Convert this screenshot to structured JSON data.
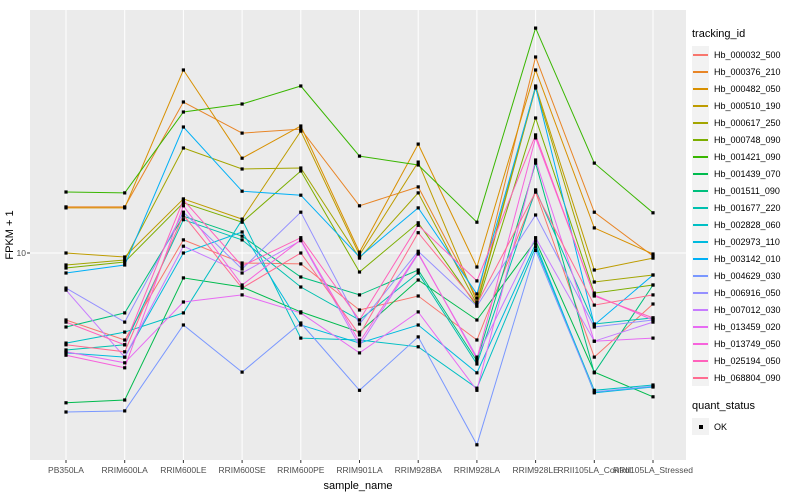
{
  "chart_data": {
    "type": "line",
    "title": "",
    "xlabel": "sample_name",
    "ylabel": "FPKM + 1",
    "y_scale": "log10",
    "y_ticks": [
      10
    ],
    "y_tick_label": "10",
    "ylim": [
      1.05,
      135
    ],
    "grid": "major-only",
    "legend_position": "right",
    "legend_color_title": "tracking_id",
    "legend_shape_title": "quant_status",
    "quant_status_values": [
      "OK"
    ],
    "marker": "black-square",
    "x_categories": [
      "PB350LA",
      "RRIM600LA",
      "RRIM600LE",
      "RRIM600SE",
      "RRIM600PE",
      "RRIM901LA",
      "RRIM928BA",
      "RRIM928LA",
      "RRIM928LE",
      "RRII105LA_Control",
      "RRII105LA_Stressed"
    ],
    "series": [
      {
        "name": "Hb_000032_500",
        "color": "#F8766D",
        "values": [
          4.67,
          3.72,
          11.6,
          8.93,
          8.83,
          5.23,
          6.13,
          3.72,
          20.0,
          3.06,
          5.6
        ]
      },
      {
        "name": "Hb_000376_210",
        "color": "#E88526",
        "values": [
          16.9,
          16.9,
          55.7,
          39.1,
          40.9,
          17.1,
          21.2,
          5.99,
          92.9,
          15.9,
          9.66
        ]
      },
      {
        "name": "Hb_000482_050",
        "color": "#D89000",
        "values": [
          16.7,
          16.7,
          80.1,
          29.4,
          42.4,
          10.1,
          34.5,
          8.53,
          80.1,
          13.3,
          9.89
        ]
      },
      {
        "name": "Hb_000510_190",
        "color": "#BE9C00",
        "values": [
          10.0,
          9.55,
          18.5,
          14.7,
          40.0,
          9.77,
          28.1,
          5.73,
          66.8,
          8.24,
          9.44
        ]
      },
      {
        "name": "Hb_000617_250",
        "color": "#A3A500",
        "values": [
          8.72,
          9.23,
          33.0,
          26.0,
          26.3,
          9.44,
          19.8,
          5.6,
          65.3,
          7.19,
          7.79
        ]
      },
      {
        "name": "Hb_000748_090",
        "color": "#7CAE00",
        "values": [
          8.43,
          9.03,
          17.7,
          14.2,
          25.4,
          8.06,
          14.1,
          5.47,
          46.4,
          6.34,
          6.95
        ]
      },
      {
        "name": "Hb_001421_090",
        "color": "#39B600",
        "values": [
          20.0,
          19.8,
          49.7,
          54.4,
          66.8,
          30.1,
          27.2,
          14.2,
          129,
          27.8,
          15.8
        ]
      },
      {
        "name": "Hb_001439_070",
        "color": "#00BB4E",
        "values": [
          1.82,
          1.88,
          7.53,
          6.79,
          5.12,
          4.07,
          7.36,
          4.67,
          11.5,
          2.58,
          1.95
        ]
      },
      {
        "name": "Hb_001511_090",
        "color": "#00BF7D",
        "values": [
          4.31,
          5.06,
          15.2,
          12.1,
          7.61,
          6.21,
          8.24,
          2.93,
          27.8,
          2.56,
          6.95
        ]
      },
      {
        "name": "Hb_001677_220",
        "color": "#00C0AF",
        "values": [
          3.32,
          3.52,
          14.6,
          11.6,
          6.79,
          4.67,
          7.97,
          2.83,
          20.5,
          4.46,
          4.78
        ]
      },
      {
        "name": "Hb_002828_060",
        "color": "#00BFC4",
        "values": [
          3.59,
          4.07,
          5.06,
          14.6,
          3.8,
          3.72,
          3.44,
          2.15,
          10.7,
          2.1,
          2.23
        ]
      },
      {
        "name": "Hb_002973_110",
        "color": "#00BADE",
        "values": [
          3.21,
          3.06,
          10.0,
          12.7,
          4.41,
          3.59,
          4.41,
          2.56,
          11.1,
          2.04,
          2.18
        ]
      },
      {
        "name": "Hb_003142_010",
        "color": "#00B0F6",
        "values": [
          7.97,
          8.72,
          41.9,
          20.2,
          19.3,
          9.55,
          16.7,
          6.28,
          66.0,
          4.41,
          7.79
        ]
      },
      {
        "name": "Hb_004629_030",
        "color": "#7997FF",
        "values": [
          1.64,
          1.66,
          4.41,
          2.58,
          4.51,
          2.1,
          3.85,
          1.13,
          10.3,
          2.06,
          2.2
        ]
      },
      {
        "name": "Hb_006916_050",
        "color": "#9590FF",
        "values": [
          6.71,
          4.56,
          15.9,
          8.34,
          15.9,
          4.46,
          10.2,
          5.47,
          15.4,
          4.31,
          4.67
        ]
      },
      {
        "name": "Hb_007012_030",
        "color": "#C77CFF",
        "values": [
          6.56,
          3.06,
          10.8,
          7.97,
          11.5,
          3.48,
          9.89,
          3.06,
          11.9,
          3.67,
          4.56
        ]
      },
      {
        "name": "Hb_013459_020",
        "color": "#E76BF3",
        "values": [
          3.25,
          2.87,
          5.73,
          6.21,
          5.06,
          3.21,
          5.12,
          2.1,
          28.8,
          3.67,
          3.8
        ]
      },
      {
        "name": "Hb_013749_050",
        "color": "#F763DC",
        "values": [
          3.13,
          2.71,
          17.1,
          6.95,
          11.6,
          3.63,
          10.0,
          3.0,
          37.0,
          6.21,
          4.67
        ]
      },
      {
        "name": "Hb_025194_050",
        "color": "#FF62BC",
        "values": [
          4.56,
          3.52,
          18.3,
          8.63,
          11.9,
          4.67,
          13.7,
          7.28,
          38.3,
          6.13,
          4.78
        ]
      },
      {
        "name": "Hb_068804_090",
        "color": "#FF6C91",
        "values": [
          3.52,
          3.25,
          15.4,
          6.71,
          10.0,
          3.94,
          12.6,
          5.6,
          20.0,
          5.53,
          6.21
        ]
      }
    ],
    "colors": {
      "panel_bg": "#EBEBEB",
      "gridline": "#FFFFFF",
      "axis_text": "#4D4D4D",
      "tick_mark": "#333333",
      "marker": "#000000",
      "legend_key_bg": "#F2F2F2"
    }
  }
}
